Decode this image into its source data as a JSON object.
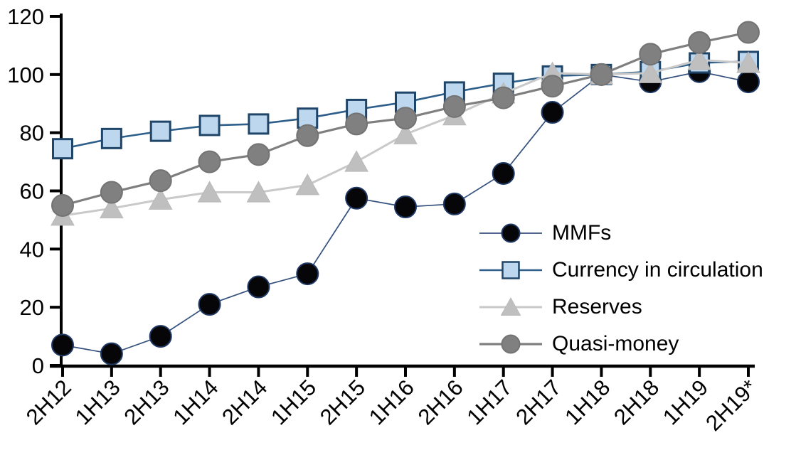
{
  "chart_data": {
    "type": "line",
    "title": "",
    "xlabel": "",
    "ylabel": "",
    "ylim": [
      0,
      120
    ],
    "y_ticks": [
      "0",
      "20",
      "40",
      "60",
      "80",
      "100",
      "120"
    ],
    "grid": false,
    "legend_position": "middle-right",
    "categories": [
      "2H12",
      "1H13",
      "2H13",
      "1H14",
      "2H14",
      "1H15",
      "2H15",
      "1H16",
      "2H16",
      "1H17",
      "2H17",
      "1H18",
      "2H18",
      "1H19",
      "2H19*"
    ],
    "series": [
      {
        "name": "MMFs",
        "marker": "circle",
        "line_color": "#34517e",
        "marker_fill": "#060609",
        "marker_stroke": "#1f3864",
        "values": [
          7,
          4,
          10,
          21,
          27,
          31.5,
          57.5,
          54.5,
          55.5,
          66,
          87,
          100,
          97.5,
          101,
          97.5
        ]
      },
      {
        "name": "Currency in circulation",
        "marker": "square",
        "line_color": "#2e5f8a",
        "marker_fill": "#bdd7ee",
        "marker_stroke": "#1f4569",
        "values": [
          74.5,
          78,
          80.5,
          82.5,
          83,
          85,
          88,
          90.5,
          94,
          97,
          99.5,
          100,
          101,
          104,
          104.5
        ]
      },
      {
        "name": "Reserves",
        "marker": "triangle",
        "line_color": "#c9c9c9",
        "marker_fill": "#bfbfbf",
        "marker_stroke": "#b9b9b9",
        "values": [
          51.5,
          54,
          57,
          59.5,
          59.5,
          62,
          70,
          79.5,
          86,
          93.5,
          100.5,
          100,
          100.5,
          105,
          104
        ]
      },
      {
        "name": "Quasi-money",
        "marker": "circle",
        "line_color": "#7f7f7f",
        "marker_fill": "#808080",
        "marker_stroke": "#737373",
        "values": [
          55,
          59.5,
          63.5,
          70,
          72.5,
          79,
          83,
          85,
          89,
          92,
          96,
          100,
          107,
          111,
          114.5
        ]
      }
    ],
    "axis_color": "#000000",
    "tick_label_color": "#000000"
  }
}
